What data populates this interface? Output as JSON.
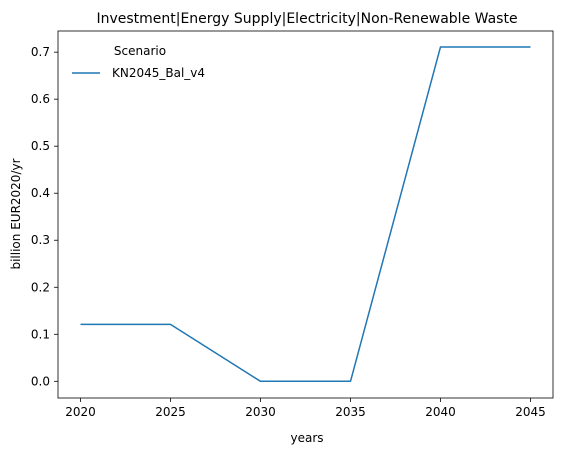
{
  "chart_data": {
    "type": "line",
    "title": "Investment|Energy Supply|Electricity|Non-Renewable Waste",
    "xlabel": "years",
    "ylabel": "billion EUR2020/yr",
    "x": [
      2020,
      2025,
      2030,
      2035,
      2040,
      2045
    ],
    "xticks": [
      "2020",
      "2025",
      "2030",
      "2035",
      "2040",
      "2045"
    ],
    "yticks": [
      "0.0",
      "0.1",
      "0.2",
      "0.3",
      "0.4",
      "0.5",
      "0.6",
      "0.7"
    ],
    "xlim": [
      2018.75,
      2046.25
    ],
    "ylim": [
      -0.0355,
      0.745
    ],
    "grid": false,
    "legend": {
      "title": "Scenario",
      "placement": "top-left"
    },
    "series": [
      {
        "name": "KN2045_Bal_v4",
        "color": "#1f77b4",
        "values": [
          0.121,
          0.121,
          0.0,
          0.0,
          0.711,
          0.711
        ]
      }
    ]
  }
}
